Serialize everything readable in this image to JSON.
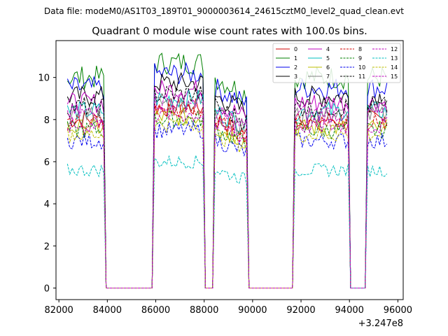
{
  "chart_data": {
    "type": "line",
    "suptitle": "Data file: modeM0/AS1T03_189T01_9000003614_24615cztM0_level2_quad_clean.evt",
    "title": "Quadrant 0 module wise count rates with 100.0s bins.",
    "xlabel": "",
    "ylabel": "",
    "x_offset_label": "+3.247e8",
    "xlim": [
      81880,
      96220
    ],
    "ylim": [
      -0.55,
      11.75
    ],
    "x_ticks": [
      82000,
      84000,
      86000,
      88000,
      90000,
      92000,
      94000,
      96000
    ],
    "x_tick_labels": [
      "82000",
      "84000",
      "86000",
      "88000",
      "90000",
      "92000",
      "94000",
      "96000"
    ],
    "y_ticks": [
      0,
      2,
      4,
      6,
      8,
      10
    ],
    "y_tick_labels": [
      "0",
      "2",
      "4",
      "6",
      "8",
      "10"
    ],
    "legend_location": "top-right",
    "bin_seconds": 100,
    "segments": [
      [
        82350,
        83850
      ],
      [
        85950,
        87950
      ],
      [
        88450,
        89750
      ],
      [
        91750,
        93950
      ],
      [
        94750,
        95550
      ]
    ],
    "gap_level": 0.0,
    "series": [
      {
        "name": "0",
        "color": "#d00000",
        "dash": "solid",
        "level": 8.0
      },
      {
        "name": "1",
        "color": "#008000",
        "dash": "solid",
        "level": 10.0
      },
      {
        "name": "2",
        "color": "#0000ee",
        "dash": "solid",
        "level": 9.5
      },
      {
        "name": "3",
        "color": "#000000",
        "dash": "solid",
        "level": 9.1
      },
      {
        "name": "4",
        "color": "#bf00bf",
        "dash": "solid",
        "level": 8.8
      },
      {
        "name": "5",
        "color": "#00bfbf",
        "dash": "solid",
        "level": 8.4
      },
      {
        "name": "6",
        "color": "#bfbf00",
        "dash": "solid",
        "level": 7.6
      },
      {
        "name": "7",
        "color": "#7f7f7f",
        "dash": "solid",
        "level": 8.2
      },
      {
        "name": "8",
        "color": "#d00000",
        "dash": "dashed",
        "level": 7.9
      },
      {
        "name": "9",
        "color": "#008000",
        "dash": "dashed",
        "level": 7.5
      },
      {
        "name": "10",
        "color": "#0000ee",
        "dash": "dashed",
        "level": 7.0
      },
      {
        "name": "11",
        "color": "#000000",
        "dash": "dashed",
        "level": 8.6
      },
      {
        "name": "12",
        "color": "#bf00bf",
        "dash": "dashed",
        "level": 8.3
      },
      {
        "name": "13",
        "color": "#00bfbf",
        "dash": "dashed",
        "level": 5.6
      },
      {
        "name": "14",
        "color": "#bfbf00",
        "dash": "dashed",
        "level": 7.3
      },
      {
        "name": "15",
        "color": "#bf00bf",
        "dash": "dashed",
        "level": 7.7
      }
    ]
  }
}
